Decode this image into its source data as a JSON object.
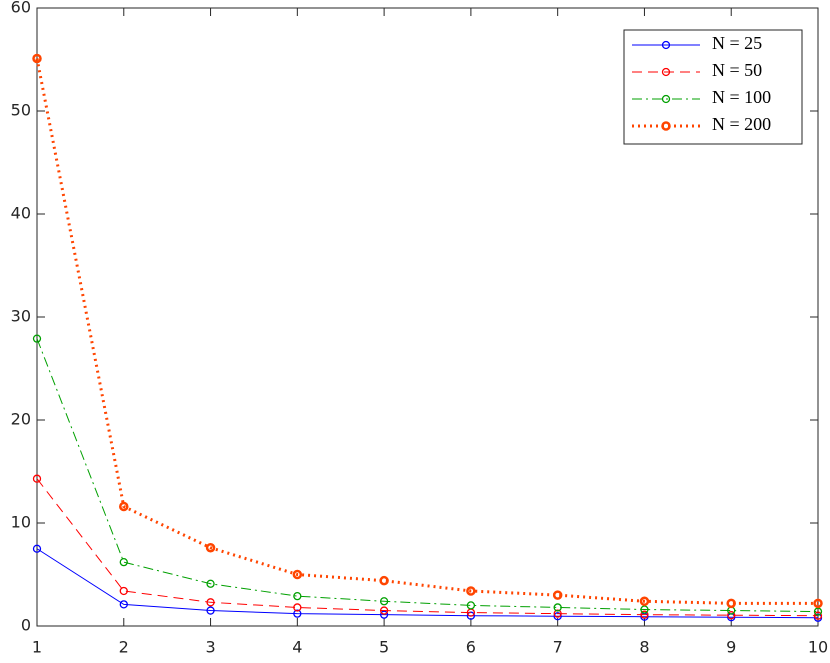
{
  "chart_data": {
    "type": "line",
    "x": [
      1,
      2,
      3,
      4,
      5,
      6,
      7,
      8,
      9,
      10
    ],
    "series": [
      {
        "name": "N = 25",
        "color": "#0000ff",
        "line_style": "solid",
        "values": [
          7.5,
          2.1,
          1.5,
          1.2,
          1.1,
          1.0,
          0.95,
          0.9,
          0.85,
          0.8
        ]
      },
      {
        "name": "N = 50",
        "color": "#ff0000",
        "line_style": "dashed",
        "values": [
          14.3,
          3.4,
          2.3,
          1.8,
          1.5,
          1.3,
          1.2,
          1.1,
          1.05,
          1.0
        ]
      },
      {
        "name": "N = 100",
        "color": "#00a000",
        "line_style": "dashdot",
        "values": [
          27.9,
          6.2,
          4.1,
          2.9,
          2.4,
          2.0,
          1.8,
          1.6,
          1.5,
          1.4
        ]
      },
      {
        "name": "N = 200",
        "color": "#ff4500",
        "line_style": "dotted",
        "values": [
          55.1,
          11.6,
          7.6,
          5.0,
          4.4,
          3.4,
          3.0,
          2.4,
          2.2,
          2.2
        ]
      }
    ],
    "xlim": [
      1,
      10
    ],
    "xticks": [
      1,
      2,
      3,
      4,
      5,
      6,
      7,
      8,
      9,
      10
    ],
    "ylim": [
      0,
      60
    ],
    "yticks": [
      0,
      10,
      20,
      30,
      40,
      50,
      60
    ],
    "legend": "upper-right"
  }
}
